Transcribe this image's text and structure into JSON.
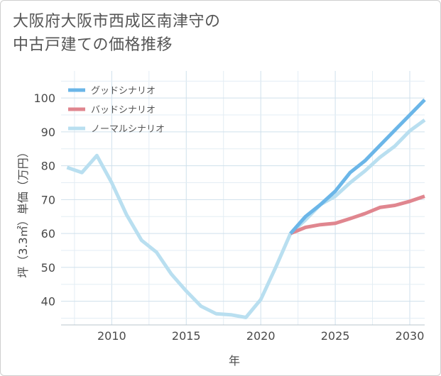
{
  "title_lines": [
    "大阪府大阪市西成区南津守の",
    "中古戸建ての価格推移"
  ],
  "chart_data": {
    "type": "line",
    "title": "大阪府大阪市西成区南津守の中古戸建ての価格推移",
    "xlabel": "年",
    "ylabel": "坪（3.3㎡）単価（万円）",
    "xlim": [
      2006.6,
      2031
    ],
    "ylim": [
      33,
      108
    ],
    "xticks": [
      2010,
      2015,
      2020,
      2025,
      2030
    ],
    "yticks": [
      40,
      50,
      60,
      70,
      80,
      90,
      100
    ],
    "grid": true,
    "legend_position": "top-left",
    "series": [
      {
        "name": "グッドシナリオ",
        "color": "#6bb6e8",
        "x": [
          2022,
          2023,
          2024,
          2025,
          2026,
          2027,
          2028,
          2029,
          2030,
          2031
        ],
        "y": [
          60,
          65,
          68.5,
          72.5,
          78,
          81.5,
          86,
          90.5,
          95,
          99.5
        ]
      },
      {
        "name": "バッドシナリオ",
        "color": "#e0868f",
        "x": [
          2022,
          2023,
          2024,
          2025,
          2026,
          2027,
          2028,
          2029,
          2030,
          2031
        ],
        "y": [
          60,
          61.8,
          62.6,
          63,
          64.4,
          65.9,
          67.7,
          68.3,
          69.5,
          71
        ]
      },
      {
        "name": "ノーマルシナリオ",
        "color": "#b9dff0",
        "x": [
          2007,
          2008,
          2009,
          2010,
          2011,
          2012,
          2013,
          2014,
          2015,
          2016,
          2017,
          2018,
          2019,
          2020,
          2021,
          2022,
          2023,
          2024,
          2025,
          2026,
          2027,
          2028,
          2029,
          2030,
          2031
        ],
        "y": [
          79.5,
          78,
          83,
          75,
          65.5,
          58,
          54.5,
          48,
          43,
          38.5,
          36.3,
          36,
          35.2,
          40.5,
          50,
          60,
          64,
          68.5,
          71,
          75,
          78.5,
          82.5,
          85.8,
          90.3,
          93.5
        ]
      }
    ]
  }
}
